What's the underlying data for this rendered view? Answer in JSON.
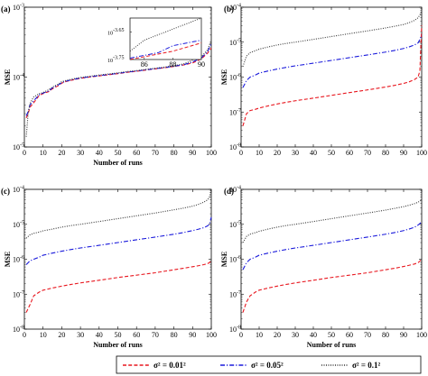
{
  "figure": {
    "legend": [
      {
        "label": "σ² = 0.01²",
        "color": "#e8171f",
        "dash": "dashed"
      },
      {
        "label": "σ² = 0.05²",
        "color": "#1a1adb",
        "dash": "dashdot"
      },
      {
        "label": "σ² = 0.1²",
        "color": "#333333",
        "dash": "dotted"
      }
    ],
    "colors": {
      "red": "#e8171f",
      "blue": "#1a1adb",
      "black": "#333333"
    }
  },
  "chart_data": [
    {
      "panel": "(a)",
      "type": "line",
      "xlabel": "Number of runs",
      "ylabel": "MSE",
      "xlim": [
        0,
        100
      ],
      "ylim": [
        1e-05,
        0.001
      ],
      "yscale": "log",
      "xticks": [
        "0",
        "10",
        "20",
        "30",
        "40",
        "50",
        "60",
        "70",
        "80",
        "90",
        "100"
      ],
      "yticks": [
        {
          "base": "10",
          "exp": "-5"
        },
        {
          "base": "10",
          "exp": "-4"
        },
        {
          "base": "10",
          "exp": "-3"
        }
      ],
      "x": [
        1,
        2,
        3,
        5,
        8,
        10,
        13,
        15,
        18,
        20,
        22,
        25,
        30,
        35,
        40,
        45,
        50,
        55,
        60,
        65,
        70,
        75,
        80,
        85,
        88,
        90,
        92,
        95,
        98,
        100
      ],
      "series": [
        {
          "color_key": "red",
          "dash": "dashed",
          "values": [
            2.6e-05,
            3e-05,
            3.7e-05,
            4.3e-05,
            5.5e-05,
            5.8e-05,
            6.2e-05,
            6.8e-05,
            7.5e-05,
            8.2e-05,
            8.6e-05,
            9e-05,
            9.6e-05,
            0.0001,
            0.000104,
            0.000108,
            0.000112,
            0.000117,
            0.000121,
            0.000126,
            0.000131,
            0.000136,
            0.000142,
            0.000149,
            0.000155,
            0.00016,
            0.000168,
            0.000185,
            0.00022,
            0.00026
          ]
        },
        {
          "color_key": "blue",
          "dash": "dashdot",
          "values": [
            2.8e-05,
            3.2e-05,
            4e-05,
            4.6e-05,
            5.6e-05,
            5.9e-05,
            6.3e-05,
            7e-05,
            7.7e-05,
            8.3e-05,
            8.7e-05,
            9.1e-05,
            9.7e-05,
            0.000101,
            0.000105,
            0.000109,
            0.000113,
            0.000118,
            0.000122,
            0.000127,
            0.000132,
            0.000137,
            0.000143,
            0.00015,
            0.000158,
            0.000165,
            0.000174,
            0.000192,
            0.00023,
            0.0003
          ]
        },
        {
          "color_key": "black",
          "dash": "dotted",
          "values": [
            1.4e-05,
            3e-05,
            4.2e-05,
            5.2e-05,
            5.8e-05,
            6e-05,
            6.6e-05,
            7.2e-05,
            7.9e-05,
            8.6e-05,
            8.9e-05,
            9.3e-05,
            9.9e-05,
            0.000103,
            0.000107,
            0.000111,
            0.000115,
            0.00012,
            0.000124,
            0.000129,
            0.000134,
            0.000139,
            0.000146,
            0.000154,
            0.000165,
            0.000175,
            0.000185,
            0.0002,
            0.000245,
            0.00034
          ]
        }
      ],
      "inset": {
        "xlim": [
          85,
          90
        ],
        "ylim_exp": [
          -3.75,
          -3.6
        ],
        "xticks": [
          "86",
          "88",
          "90"
        ],
        "yticks": [
          {
            "base": "10",
            "exp": "-3.75"
          },
          {
            "base": "10",
            "exp": "-3.65"
          }
        ],
        "x": [
          85,
          86,
          87,
          88,
          89,
          90
        ],
        "series": [
          {
            "color_key": "red",
            "dash": "dashed",
            "values": [
              -3.75,
              -3.74,
              -3.73,
              -3.72,
              -3.705,
              -3.69
            ]
          },
          {
            "color_key": "blue",
            "dash": "dashdot",
            "values": [
              -3.745,
              -3.735,
              -3.725,
              -3.7,
              -3.69,
              -3.68
            ]
          },
          {
            "color_key": "black",
            "dash": "dotted",
            "values": [
              -3.72,
              -3.68,
              -3.66,
              -3.64,
              -3.62,
              -3.6
            ]
          }
        ]
      }
    },
    {
      "panel": "(b)",
      "type": "line",
      "xlabel": "",
      "ylabel": "MSE",
      "xlim": [
        0,
        100
      ],
      "ylim": [
        1e-08,
        0.0001
      ],
      "yscale": "log",
      "xticks": [
        "0",
        "10",
        "20",
        "30",
        "40",
        "50",
        "60",
        "70",
        "80",
        "90",
        "100"
      ],
      "yticks": [
        {
          "base": "10",
          "exp": "-8"
        },
        {
          "base": "10",
          "exp": "-7"
        },
        {
          "base": "10",
          "exp": "-6"
        },
        {
          "base": "10",
          "exp": "-5"
        },
        {
          "base": "10",
          "exp": "-4"
        }
      ],
      "x": [
        1,
        3,
        5,
        8,
        10,
        15,
        20,
        25,
        30,
        40,
        50,
        60,
        70,
        80,
        85,
        90,
        93,
        96,
        98,
        99,
        100
      ],
      "series": [
        {
          "color_key": "red",
          "dash": "dashed",
          "values": [
            4e-08,
            9e-08,
            1.1e-07,
            1.2e-07,
            1.3e-07,
            1.5e-07,
            1.7e-07,
            1.9e-07,
            2.1e-07,
            2.5e-07,
            3e-07,
            3.6e-07,
            4.3e-07,
            5.2e-07,
            5.8e-07,
            6.6e-07,
            7.3e-07,
            8.5e-07,
            1e-06,
            1.5e-06,
            3e-05
          ]
        },
        {
          "color_key": "blue",
          "dash": "dashdot",
          "values": [
            5e-07,
            8e-07,
            1e-06,
            1.15e-06,
            1.3e-06,
            1.5e-06,
            1.7e-06,
            1.9e-06,
            2.1e-06,
            2.5e-06,
            3e-06,
            3.6e-06,
            4.3e-06,
            5.2e-06,
            5.8e-06,
            6.6e-06,
            7.3e-06,
            8.3e-06,
            9.5e-06,
            1.2e-05,
            1.6e-05
          ]
        },
        {
          "color_key": "black",
          "dash": "dotted",
          "values": [
            2e-06,
            4e-06,
            5e-06,
            5.7e-06,
            6.3e-06,
            7.3e-06,
            8.3e-06,
            9.2e-06,
            1e-05,
            1.2e-05,
            1.45e-05,
            1.75e-05,
            2.1e-05,
            2.55e-05,
            2.85e-05,
            3.2e-05,
            3.6e-05,
            4.2e-05,
            5e-05,
            6e-05,
            8e-05
          ]
        }
      ]
    },
    {
      "panel": "(c)",
      "type": "line",
      "xlabel": "Number of runs",
      "ylabel": "MSE",
      "xlim": [
        0,
        100
      ],
      "ylim": [
        1e-08,
        0.0001
      ],
      "yscale": "log",
      "xticks": [
        "0",
        "10",
        "20",
        "30",
        "40",
        "50",
        "60",
        "70",
        "80",
        "90",
        "100"
      ],
      "yticks": [
        {
          "base": "10",
          "exp": "-8"
        },
        {
          "base": "10",
          "exp": "-7"
        },
        {
          "base": "10",
          "exp": "-6"
        },
        {
          "base": "10",
          "exp": "-5"
        },
        {
          "base": "10",
          "exp": "-4"
        }
      ],
      "x": [
        1,
        3,
        5,
        8,
        10,
        15,
        20,
        25,
        30,
        40,
        50,
        60,
        70,
        80,
        85,
        90,
        93,
        96,
        98,
        99,
        100
      ],
      "series": [
        {
          "color_key": "red",
          "dash": "dashed",
          "values": [
            3e-08,
            5e-08,
            9e-08,
            1.15e-07,
            1.3e-07,
            1.5e-07,
            1.7e-07,
            1.9e-07,
            2.1e-07,
            2.5e-07,
            3e-07,
            3.5e-07,
            4.1e-07,
            5e-07,
            5.5e-07,
            6.1e-07,
            6.5e-07,
            7e-07,
            7.5e-07,
            8e-07,
            9e-07
          ]
        },
        {
          "color_key": "blue",
          "dash": "dashdot",
          "values": [
            7e-07,
            9e-07,
            1e-06,
            1.15e-06,
            1.3e-06,
            1.5e-06,
            1.7e-06,
            1.9e-06,
            2.1e-06,
            2.5e-06,
            3e-06,
            3.6e-06,
            4.3e-06,
            5.2e-06,
            5.8e-06,
            6.6e-06,
            7.2e-06,
            8e-06,
            9e-06,
            1e-05,
            1.6e-05
          ]
        },
        {
          "color_key": "black",
          "dash": "dotted",
          "values": [
            4e-06,
            5e-06,
            5.5e-06,
            6e-06,
            6.5e-06,
            7.3e-06,
            8.3e-06,
            9.2e-06,
            1e-05,
            1.2e-05,
            1.45e-05,
            1.75e-05,
            2.1e-05,
            2.6e-05,
            2.9e-05,
            3.3e-05,
            3.7e-05,
            4.3e-05,
            5e-05,
            6e-05,
            0.0001
          ]
        }
      ]
    },
    {
      "panel": "(d)",
      "type": "line",
      "xlabel": "Number of runs",
      "ylabel": "MSE",
      "xlim": [
        0,
        100
      ],
      "ylim": [
        1e-08,
        0.0001
      ],
      "yscale": "log",
      "xticks": [
        "0",
        "10",
        "20",
        "30",
        "40",
        "50",
        "60",
        "70",
        "80",
        "90",
        "100"
      ],
      "yticks": [
        {
          "base": "10",
          "exp": "-8"
        },
        {
          "base": "10",
          "exp": "-7"
        },
        {
          "base": "10",
          "exp": "-6"
        },
        {
          "base": "10",
          "exp": "-5"
        },
        {
          "base": "10",
          "exp": "-4"
        }
      ],
      "x": [
        1,
        3,
        5,
        8,
        10,
        15,
        20,
        25,
        30,
        40,
        50,
        60,
        70,
        80,
        85,
        90,
        93,
        96,
        98,
        99,
        100
      ],
      "series": [
        {
          "color_key": "red",
          "dash": "dashed",
          "values": [
            3e-08,
            6e-08,
            9e-08,
            1.15e-07,
            1.3e-07,
            1.5e-07,
            1.7e-07,
            1.9e-07,
            2.1e-07,
            2.5e-07,
            3e-07,
            3.5e-07,
            4.1e-07,
            5e-07,
            5.5e-07,
            6.2e-07,
            6.7e-07,
            7.3e-07,
            8e-07,
            8.8e-07,
            1e-06
          ]
        },
        {
          "color_key": "blue",
          "dash": "dashdot",
          "values": [
            5e-07,
            8e-07,
            1e-06,
            1.15e-06,
            1.3e-06,
            1.5e-06,
            1.7e-06,
            1.9e-06,
            2.1e-06,
            2.5e-06,
            3e-06,
            3.6e-06,
            4.3e-06,
            5.2e-06,
            5.8e-06,
            6.6e-06,
            7.3e-06,
            8.2e-06,
            9.5e-06,
            1.05e-05,
            1.2e-05
          ]
        },
        {
          "color_key": "black",
          "dash": "dotted",
          "values": [
            3e-06,
            4.5e-06,
            5.2e-06,
            5.8e-06,
            6.3e-06,
            7.3e-06,
            8.3e-06,
            9.2e-06,
            1e-05,
            1.2e-05,
            1.45e-05,
            1.75e-05,
            2.1e-05,
            2.55e-05,
            2.85e-05,
            3.2e-05,
            3.5e-05,
            3.9e-05,
            4.3e-05,
            4.6e-05,
            5e-05
          ]
        }
      ]
    }
  ]
}
